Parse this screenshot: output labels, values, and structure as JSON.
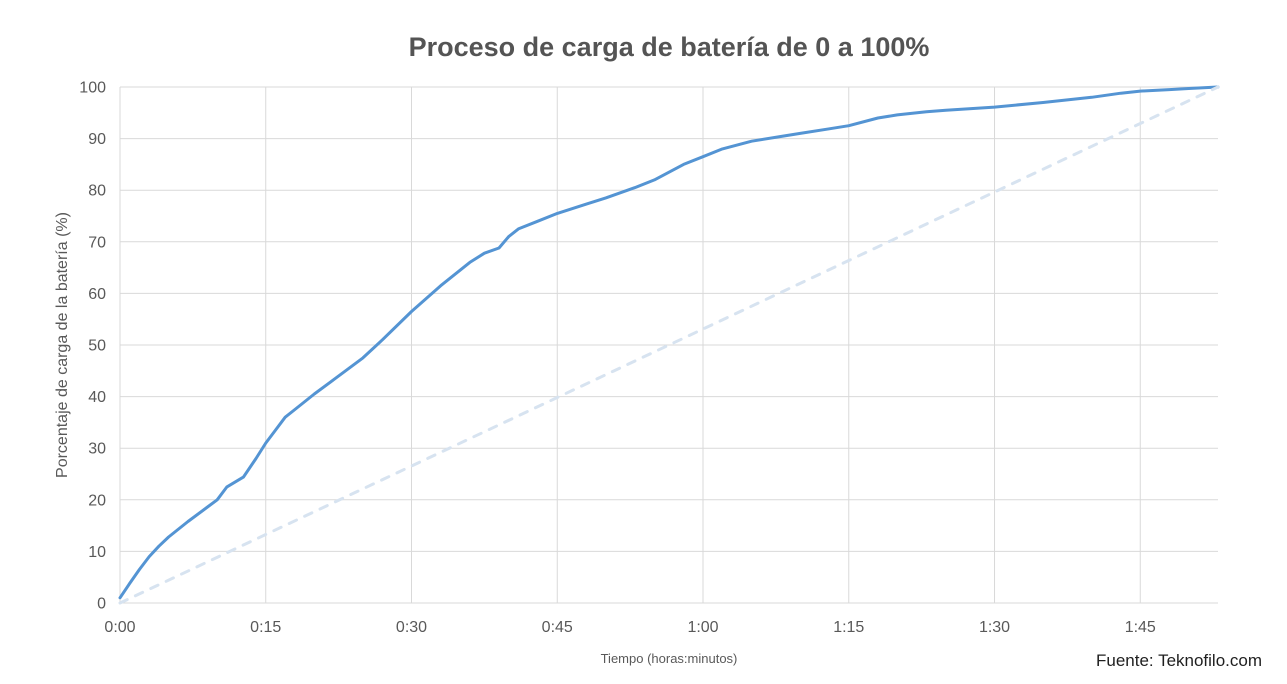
{
  "chart_data": {
    "type": "line",
    "title": "Proceso de carga de batería de 0 a 100%",
    "xlabel": "Tiempo (horas:minutos)",
    "ylabel": "Porcentaje de carga de la batería (%)",
    "xlim_minutes": [
      0,
      113
    ],
    "ylim": [
      0,
      100
    ],
    "y_ticks": [
      0,
      10,
      20,
      30,
      40,
      50,
      60,
      70,
      80,
      90,
      100
    ],
    "x_ticks": [
      {
        "minutes": 0,
        "label": "0:00"
      },
      {
        "minutes": 15,
        "label": "0:15"
      },
      {
        "minutes": 30,
        "label": "0:30"
      },
      {
        "minutes": 45,
        "label": "0:45"
      },
      {
        "minutes": 60,
        "label": "1:00"
      },
      {
        "minutes": 75,
        "label": "1:15"
      },
      {
        "minutes": 90,
        "label": "1:30"
      },
      {
        "minutes": 105,
        "label": "1:45"
      }
    ],
    "grid": true,
    "legend": "none",
    "series": [
      {
        "id": "charge-curve",
        "style": "solid",
        "color": "#5494d3",
        "width": 3,
        "points": [
          [
            0,
            1
          ],
          [
            1,
            3.8
          ],
          [
            2,
            6.5
          ],
          [
            3,
            9
          ],
          [
            4,
            11
          ],
          [
            5,
            12.8
          ],
          [
            7,
            15.8
          ],
          [
            9,
            18.6
          ],
          [
            10,
            20
          ],
          [
            11,
            22.5
          ],
          [
            12.7,
            24.4
          ],
          [
            14,
            28
          ],
          [
            15,
            31
          ],
          [
            16,
            33.5
          ],
          [
            17,
            36
          ],
          [
            18,
            37.5
          ],
          [
            20,
            40.5
          ],
          [
            22,
            43.3
          ],
          [
            25,
            47.5
          ],
          [
            27,
            51
          ],
          [
            30,
            56.5
          ],
          [
            33,
            61.5
          ],
          [
            35,
            64.5
          ],
          [
            36,
            66
          ],
          [
            37.5,
            67.8
          ],
          [
            39,
            68.8
          ],
          [
            40,
            71
          ],
          [
            41,
            72.5
          ],
          [
            43,
            74
          ],
          [
            45,
            75.5
          ],
          [
            48,
            77.3
          ],
          [
            50,
            78.5
          ],
          [
            53,
            80.5
          ],
          [
            55,
            82
          ],
          [
            58,
            85
          ],
          [
            60,
            86.5
          ],
          [
            62,
            88
          ],
          [
            65,
            89.5
          ],
          [
            68,
            90.4
          ],
          [
            70,
            91
          ],
          [
            73,
            91.9
          ],
          [
            75,
            92.5
          ],
          [
            78,
            94
          ],
          [
            80,
            94.6
          ],
          [
            83,
            95.2
          ],
          [
            85,
            95.5
          ],
          [
            90,
            96.1
          ],
          [
            95,
            97
          ],
          [
            100,
            98
          ],
          [
            103,
            98.8
          ],
          [
            105,
            99.2
          ],
          [
            108,
            99.5
          ],
          [
            110,
            99.7
          ],
          [
            113,
            100
          ]
        ]
      },
      {
        "id": "linear-reference",
        "style": "dashed",
        "color": "#d7e3f0",
        "width": 3,
        "points": [
          [
            0,
            0
          ],
          [
            113,
            100
          ]
        ]
      }
    ]
  },
  "footer": {
    "source": "Fuente: Teknofilo.com"
  },
  "colors": {
    "background": "#ffffff",
    "gridline": "#d9d9d9",
    "axis_line": "#d9d9d9",
    "title": "#545454",
    "tick_label": "#595959",
    "accent_blue": "#5494d3",
    "reference_blue": "#d7e3f0"
  }
}
